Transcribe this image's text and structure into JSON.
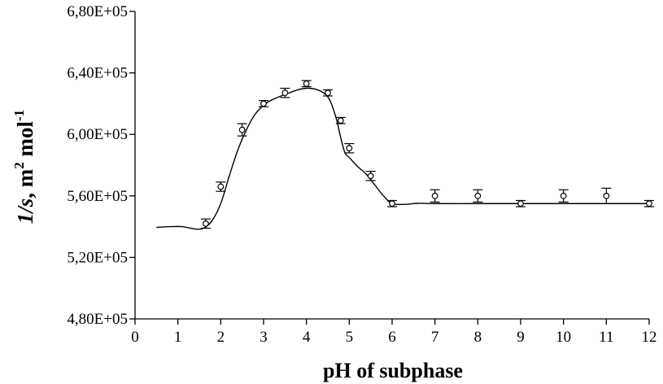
{
  "chart_data": {
    "type": "scatter",
    "title": "",
    "xlabel": "pH of subphase",
    "ylabel_main": "1/s",
    "ylabel_unit": ", m",
    "ylabel_sup1": "2",
    "ylabel_unit2": " mol",
    "ylabel_sup2": "-1",
    "xlim": [
      0,
      12
    ],
    "ylim": [
      480000,
      680000
    ],
    "x_ticks": [
      0,
      1,
      2,
      3,
      4,
      5,
      6,
      7,
      8,
      9,
      10,
      11,
      12
    ],
    "x_tick_labels": [
      "0",
      "1",
      "2",
      "3",
      "4",
      "5",
      "6",
      "7",
      "8",
      "9",
      "10",
      "11",
      "12"
    ],
    "y_ticks": [
      480000,
      520000,
      560000,
      600000,
      640000,
      680000
    ],
    "y_tick_labels": [
      "4,80E+05",
      "5,20E+05",
      "5,60E+05",
      "6,00E+05",
      "6,40E+05",
      "6,80E+05"
    ],
    "grid": false,
    "points": [
      {
        "x": 1.65,
        "y": 542000,
        "err": 3000
      },
      {
        "x": 2.0,
        "y": 566000,
        "err": 3000
      },
      {
        "x": 2.5,
        "y": 603000,
        "err": 4000
      },
      {
        "x": 3.0,
        "y": 620000,
        "err": 2000
      },
      {
        "x": 3.5,
        "y": 627000,
        "err": 3000
      },
      {
        "x": 4.0,
        "y": 633000,
        "err": 2000
      },
      {
        "x": 4.5,
        "y": 627000,
        "err": 2000
      },
      {
        "x": 4.8,
        "y": 609000,
        "err": 2000
      },
      {
        "x": 5.0,
        "y": 591000,
        "err": 3000
      },
      {
        "x": 5.5,
        "y": 573000,
        "err": 3000
      },
      {
        "x": 6.0,
        "y": 555000,
        "err": 2000
      },
      {
        "x": 7.0,
        "y": 560000,
        "err": 4000
      },
      {
        "x": 8.0,
        "y": 560000,
        "err": 4000
      },
      {
        "x": 9.0,
        "y": 555000,
        "err": 2000
      },
      {
        "x": 10.0,
        "y": 560000,
        "err": 4000
      },
      {
        "x": 11.0,
        "y": 560000,
        "err": 5000
      },
      {
        "x": 12.0,
        "y": 555000,
        "err": 2000
      }
    ],
    "fit_curve": [
      [
        0.5,
        539500
      ],
      [
        0.8,
        540000
      ],
      [
        1.1,
        540000
      ],
      [
        1.4,
        538500
      ],
      [
        1.6,
        539000
      ],
      [
        1.8,
        544000
      ],
      [
        2.0,
        555000
      ],
      [
        2.2,
        573000
      ],
      [
        2.4,
        590000
      ],
      [
        2.6,
        603000
      ],
      [
        2.8,
        613000
      ],
      [
        3.0,
        619000
      ],
      [
        3.2,
        622500
      ],
      [
        3.5,
        626000
      ],
      [
        3.8,
        629000
      ],
      [
        4.0,
        630000
      ],
      [
        4.2,
        629500
      ],
      [
        4.4,
        627000
      ],
      [
        4.55,
        622000
      ],
      [
        4.7,
        610000
      ],
      [
        4.8,
        598000
      ],
      [
        4.9,
        588000
      ],
      [
        5.0,
        585000
      ],
      [
        5.2,
        579000
      ],
      [
        5.4,
        574000
      ],
      [
        5.6,
        567000
      ],
      [
        5.8,
        560000
      ],
      [
        6.0,
        555000
      ],
      [
        6.3,
        554500
      ],
      [
        6.6,
        555200
      ],
      [
        7.0,
        555000
      ],
      [
        8.0,
        555000
      ],
      [
        9.0,
        555000
      ],
      [
        10.0,
        555000
      ],
      [
        11.0,
        555000
      ],
      [
        12.0,
        555000
      ]
    ]
  }
}
